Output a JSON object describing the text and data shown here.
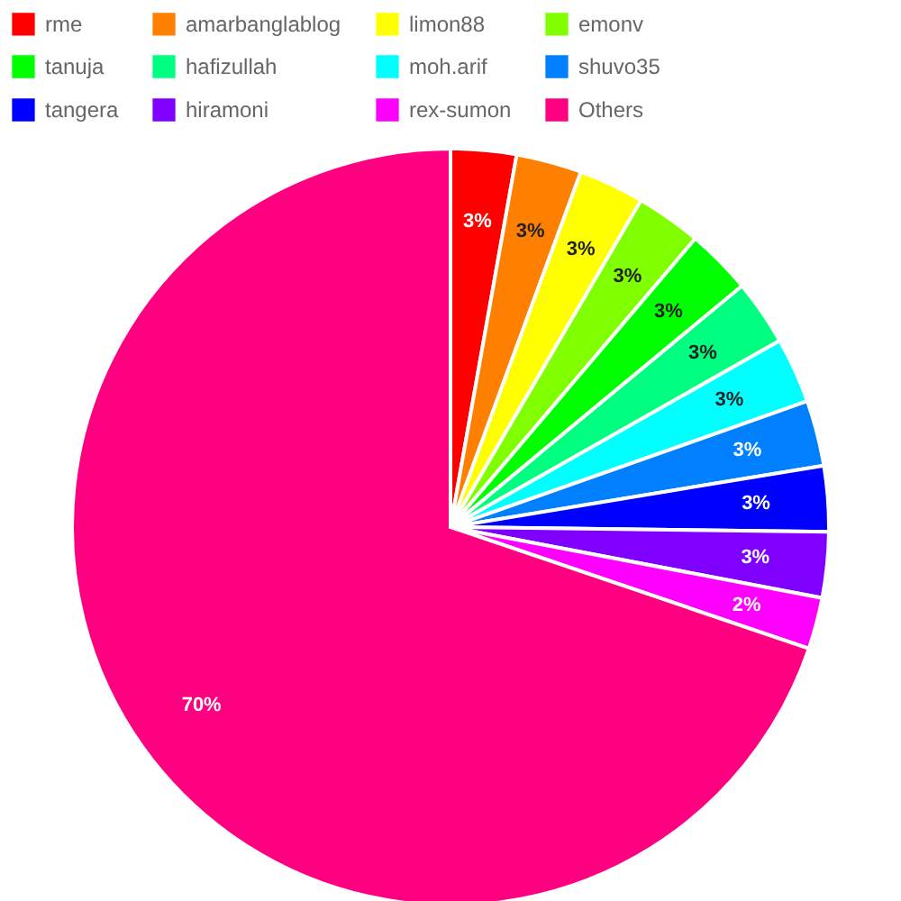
{
  "chart_data": {
    "type": "pie",
    "categories": [
      "rme",
      "amarbanglablog",
      "limon88",
      "emonv",
      "tanuja",
      "hafizullah",
      "moh.arif",
      "shuvo35",
      "tangera",
      "hiramoni",
      "rex-sumon",
      "Others"
    ],
    "values": [
      2.8,
      2.8,
      2.8,
      2.8,
      2.8,
      2.8,
      2.8,
      2.8,
      2.8,
      2.8,
      2.2,
      69.8
    ],
    "value_labels": [
      "3%",
      "3%",
      "3%",
      "3%",
      "3%",
      "3%",
      "3%",
      "3%",
      "3%",
      "3%",
      "2%",
      "70%"
    ],
    "colors": [
      "#ff0000",
      "#ff8000",
      "#ffff00",
      "#80ff00",
      "#00ff00",
      "#00ff80",
      "#00ffff",
      "#0080ff",
      "#0000ff",
      "#8000ff",
      "#ff00ff",
      "#ff0080"
    ],
    "legend": "top"
  }
}
